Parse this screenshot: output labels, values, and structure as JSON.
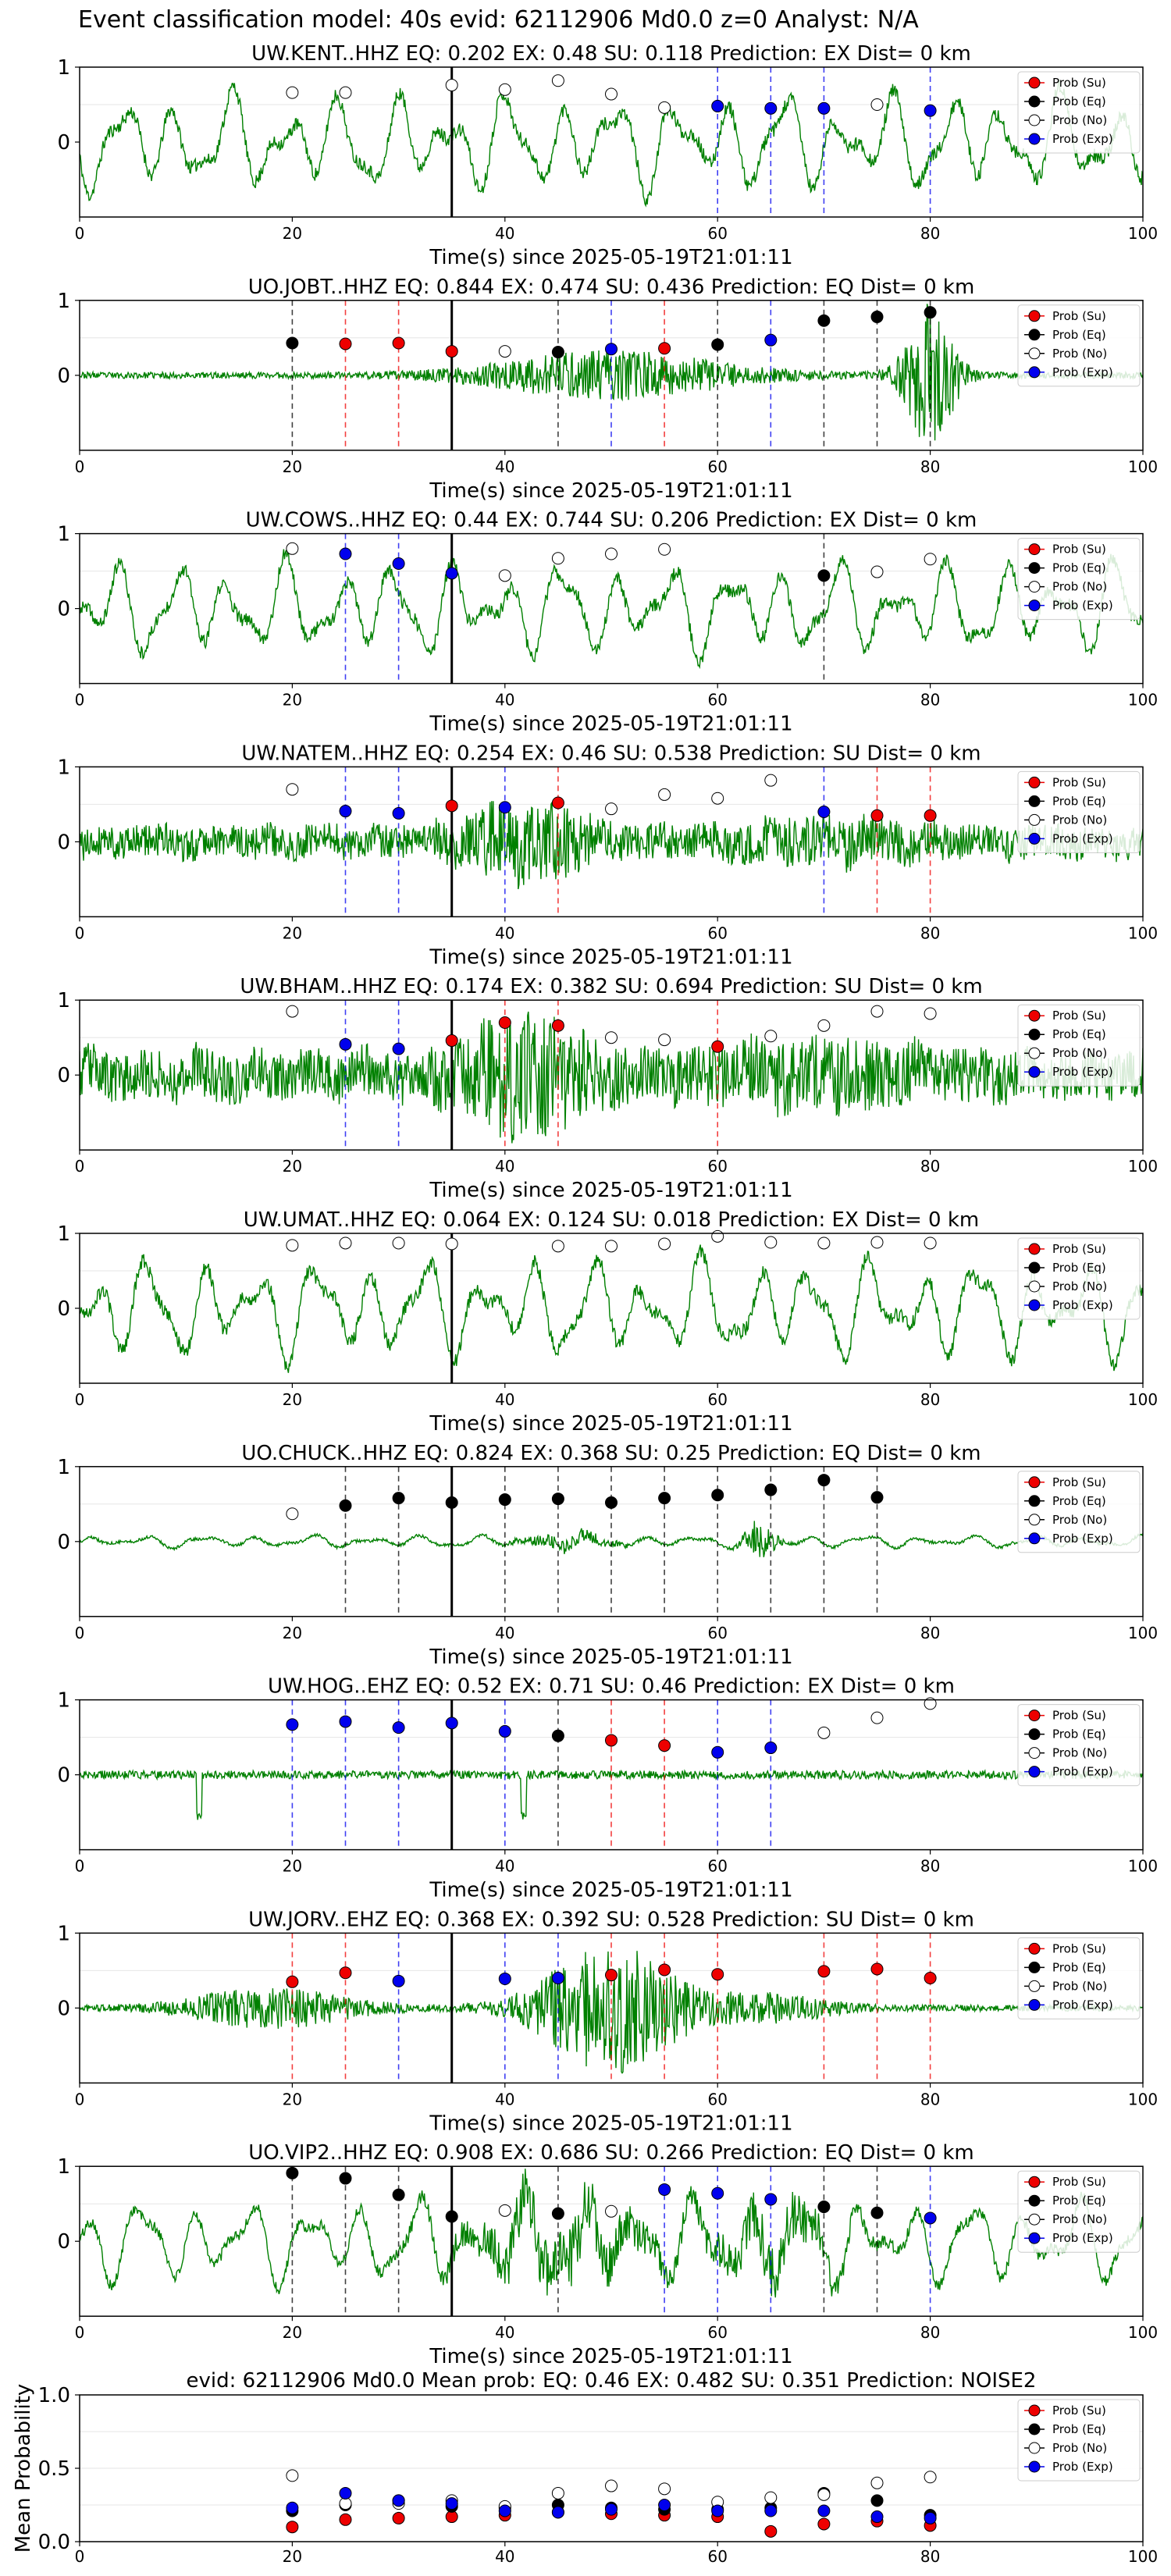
{
  "figure": {
    "suptitle": "Event classification model: 40s evid: 62112906 Md0.0 z=0 Analyst: N/A"
  },
  "legend_labels": [
    "Prob (Su)",
    "Prob (Eq)",
    "Prob (No)",
    "Prob (Exp)"
  ],
  "colors": {
    "su": "#ee0000",
    "eq": "#000000",
    "no": "#ffffff",
    "exp": "#0000ee",
    "trace": "#008000",
    "origin_line": "#000000",
    "grid": "#e6e6e6"
  },
  "chart_data": [
    {
      "type": "scatter",
      "title": "UW.KENT..HHZ   EQ: 0.202  EX: 0.48  SU: 0.118   Prediction: EX    Dist= 0 km",
      "xlabel": "Time(s) since 2025-05-19T21:01:11",
      "ylabel": "",
      "xlim": [
        0,
        100
      ],
      "ylim": [
        -1,
        1
      ],
      "x_ticks": [
        "0",
        "20",
        "40",
        "60",
        "80",
        "100"
      ],
      "y_ticks": [
        "0",
        "1"
      ],
      "origin_time": 35,
      "trace": {
        "style": "lowfreq",
        "amp": 0.78,
        "seed": 11
      },
      "points": [
        {
          "x": 20,
          "y": 0.66,
          "class": "no"
        },
        {
          "x": 25,
          "y": 0.66,
          "class": "no"
        },
        {
          "x": 35,
          "y": 0.76,
          "class": "no"
        },
        {
          "x": 40,
          "y": 0.7,
          "class": "no"
        },
        {
          "x": 45,
          "y": 0.82,
          "class": "no"
        },
        {
          "x": 50,
          "y": 0.64,
          "class": "no"
        },
        {
          "x": 55,
          "y": 0.46,
          "class": "no"
        },
        {
          "x": 60,
          "y": 0.48,
          "class": "exp"
        },
        {
          "x": 65,
          "y": 0.45,
          "class": "exp"
        },
        {
          "x": 70,
          "y": 0.45,
          "class": "exp"
        },
        {
          "x": 75,
          "y": 0.5,
          "class": "no"
        },
        {
          "x": 80,
          "y": 0.42,
          "class": "exp"
        }
      ]
    },
    {
      "type": "scatter",
      "title": "UO.JOBT..HHZ   EQ: 0.844  EX: 0.474  SU: 0.436   Prediction: EQ    Dist= 0 km",
      "xlabel": "Time(s) since 2025-05-19T21:01:11",
      "ylabel": "",
      "xlim": [
        0,
        100
      ],
      "ylim": [
        -1,
        1
      ],
      "x_ticks": [
        "0",
        "20",
        "40",
        "60",
        "80",
        "100"
      ],
      "y_ticks": [
        "0",
        "1"
      ],
      "origin_time": 35,
      "trace": {
        "style": "quiet_burst",
        "amp": 0.85,
        "seed": 23
      },
      "points": [
        {
          "x": 20,
          "y": 0.43,
          "class": "eq"
        },
        {
          "x": 25,
          "y": 0.42,
          "class": "su"
        },
        {
          "x": 30,
          "y": 0.43,
          "class": "su"
        },
        {
          "x": 35,
          "y": 0.32,
          "class": "su"
        },
        {
          "x": 40,
          "y": 0.32,
          "class": "no"
        },
        {
          "x": 45,
          "y": 0.31,
          "class": "eq"
        },
        {
          "x": 50,
          "y": 0.35,
          "class": "exp"
        },
        {
          "x": 55,
          "y": 0.36,
          "class": "su"
        },
        {
          "x": 60,
          "y": 0.41,
          "class": "eq"
        },
        {
          "x": 65,
          "y": 0.47,
          "class": "exp"
        },
        {
          "x": 70,
          "y": 0.73,
          "class": "eq"
        },
        {
          "x": 75,
          "y": 0.78,
          "class": "eq"
        },
        {
          "x": 80,
          "y": 0.84,
          "class": "eq"
        }
      ]
    },
    {
      "type": "scatter",
      "title": "UW.COWS..HHZ   EQ: 0.44  EX: 0.744  SU: 0.206   Prediction: EX    Dist= 0 km",
      "xlabel": "Time(s) since 2025-05-19T21:01:11",
      "ylabel": "",
      "xlim": [
        0,
        100
      ],
      "ylim": [
        -1,
        1
      ],
      "x_ticks": [
        "0",
        "20",
        "40",
        "60",
        "80",
        "100"
      ],
      "y_ticks": [
        "0",
        "1"
      ],
      "origin_time": 35,
      "trace": {
        "style": "lowfreq",
        "amp": 0.75,
        "seed": 37
      },
      "points": [
        {
          "x": 20,
          "y": 0.8,
          "class": "no"
        },
        {
          "x": 25,
          "y": 0.73,
          "class": "exp"
        },
        {
          "x": 30,
          "y": 0.6,
          "class": "exp"
        },
        {
          "x": 35,
          "y": 0.47,
          "class": "exp"
        },
        {
          "x": 40,
          "y": 0.44,
          "class": "no"
        },
        {
          "x": 45,
          "y": 0.67,
          "class": "no"
        },
        {
          "x": 50,
          "y": 0.73,
          "class": "no"
        },
        {
          "x": 55,
          "y": 0.79,
          "class": "no"
        },
        {
          "x": 70,
          "y": 0.44,
          "class": "eq"
        },
        {
          "x": 75,
          "y": 0.49,
          "class": "no"
        },
        {
          "x": 80,
          "y": 0.66,
          "class": "no"
        }
      ]
    },
    {
      "type": "scatter",
      "title": "UW.NATEM..HHZ   EQ: 0.254  EX: 0.46  SU: 0.538   Prediction: SU    Dist= 0 km",
      "xlabel": "Time(s) since 2025-05-19T21:01:11",
      "ylabel": "",
      "xlim": [
        0,
        100
      ],
      "ylim": [
        -1,
        1
      ],
      "x_ticks": [
        "0",
        "20",
        "40",
        "60",
        "80",
        "100"
      ],
      "y_ticks": [
        "0",
        "1"
      ],
      "origin_time": 35,
      "trace": {
        "style": "noisy",
        "amp": 0.5,
        "seed": 41
      },
      "points": [
        {
          "x": 20,
          "y": 0.7,
          "class": "no"
        },
        {
          "x": 25,
          "y": 0.41,
          "class": "exp"
        },
        {
          "x": 30,
          "y": 0.38,
          "class": "exp"
        },
        {
          "x": 35,
          "y": 0.48,
          "class": "su"
        },
        {
          "x": 40,
          "y": 0.46,
          "class": "exp"
        },
        {
          "x": 45,
          "y": 0.52,
          "class": "su"
        },
        {
          "x": 50,
          "y": 0.44,
          "class": "no"
        },
        {
          "x": 55,
          "y": 0.63,
          "class": "no"
        },
        {
          "x": 60,
          "y": 0.58,
          "class": "no"
        },
        {
          "x": 65,
          "y": 0.82,
          "class": "no"
        },
        {
          "x": 70,
          "y": 0.4,
          "class": "exp"
        },
        {
          "x": 75,
          "y": 0.35,
          "class": "su"
        },
        {
          "x": 80,
          "y": 0.35,
          "class": "su"
        }
      ]
    },
    {
      "type": "scatter",
      "title": "UW.BHAM..HHZ   EQ: 0.174  EX: 0.382  SU: 0.694   Prediction: SU    Dist= 0 km",
      "xlabel": "Time(s) since 2025-05-19T21:01:11",
      "ylabel": "",
      "xlim": [
        0,
        100
      ],
      "ylim": [
        -1,
        1
      ],
      "x_ticks": [
        "0",
        "20",
        "40",
        "60",
        "80",
        "100"
      ],
      "y_ticks": [
        "0",
        "1"
      ],
      "origin_time": 35,
      "trace": {
        "style": "noisy",
        "amp": 0.75,
        "seed": 53
      },
      "points": [
        {
          "x": 20,
          "y": 0.85,
          "class": "no"
        },
        {
          "x": 25,
          "y": 0.41,
          "class": "exp"
        },
        {
          "x": 30,
          "y": 0.35,
          "class": "exp"
        },
        {
          "x": 35,
          "y": 0.46,
          "class": "su"
        },
        {
          "x": 40,
          "y": 0.7,
          "class": "su"
        },
        {
          "x": 45,
          "y": 0.66,
          "class": "su"
        },
        {
          "x": 50,
          "y": 0.5,
          "class": "no"
        },
        {
          "x": 55,
          "y": 0.47,
          "class": "no"
        },
        {
          "x": 60,
          "y": 0.38,
          "class": "su"
        },
        {
          "x": 65,
          "y": 0.52,
          "class": "no"
        },
        {
          "x": 70,
          "y": 0.66,
          "class": "no"
        },
        {
          "x": 75,
          "y": 0.85,
          "class": "no"
        },
        {
          "x": 80,
          "y": 0.82,
          "class": "no"
        }
      ]
    },
    {
      "type": "scatter",
      "title": "UW.UMAT..HHZ   EQ: 0.064  EX: 0.124  SU: 0.018   Prediction: EX    Dist= 0 km",
      "xlabel": "Time(s) since 2025-05-19T21:01:11",
      "ylabel": "",
      "xlim": [
        0,
        100
      ],
      "ylim": [
        -1,
        1
      ],
      "x_ticks": [
        "0",
        "20",
        "40",
        "60",
        "80",
        "100"
      ],
      "y_ticks": [
        "0",
        "1"
      ],
      "origin_time": 35,
      "trace": {
        "style": "lowfreq",
        "amp": 0.8,
        "seed": 67
      },
      "points": [
        {
          "x": 20,
          "y": 0.84,
          "class": "no"
        },
        {
          "x": 25,
          "y": 0.87,
          "class": "no"
        },
        {
          "x": 30,
          "y": 0.87,
          "class": "no"
        },
        {
          "x": 35,
          "y": 0.86,
          "class": "no"
        },
        {
          "x": 45,
          "y": 0.83,
          "class": "no"
        },
        {
          "x": 50,
          "y": 0.83,
          "class": "no"
        },
        {
          "x": 55,
          "y": 0.86,
          "class": "no"
        },
        {
          "x": 60,
          "y": 0.96,
          "class": "no"
        },
        {
          "x": 65,
          "y": 0.88,
          "class": "no"
        },
        {
          "x": 70,
          "y": 0.87,
          "class": "no"
        },
        {
          "x": 75,
          "y": 0.88,
          "class": "no"
        },
        {
          "x": 80,
          "y": 0.87,
          "class": "no"
        }
      ]
    },
    {
      "type": "scatter",
      "title": "UO.CHUCK..HHZ   EQ: 0.824  EX: 0.368  SU: 0.25   Prediction: EQ    Dist= 0 km",
      "xlabel": "Time(s) since 2025-05-19T21:01:11",
      "ylabel": "",
      "xlim": [
        0,
        100
      ],
      "ylim": [
        -1,
        1
      ],
      "x_ticks": [
        "0",
        "20",
        "40",
        "60",
        "80",
        "100"
      ],
      "y_ticks": [
        "0",
        "1"
      ],
      "origin_time": 35,
      "trace": {
        "style": "quiet_lowfreq_burst",
        "amp": 0.25,
        "seed": 79
      },
      "points": [
        {
          "x": 20,
          "y": 0.37,
          "class": "no"
        },
        {
          "x": 25,
          "y": 0.48,
          "class": "eq"
        },
        {
          "x": 30,
          "y": 0.58,
          "class": "eq"
        },
        {
          "x": 35,
          "y": 0.52,
          "class": "eq"
        },
        {
          "x": 40,
          "y": 0.56,
          "class": "eq"
        },
        {
          "x": 45,
          "y": 0.57,
          "class": "eq"
        },
        {
          "x": 50,
          "y": 0.52,
          "class": "eq"
        },
        {
          "x": 55,
          "y": 0.58,
          "class": "eq"
        },
        {
          "x": 60,
          "y": 0.62,
          "class": "eq"
        },
        {
          "x": 65,
          "y": 0.69,
          "class": "eq"
        },
        {
          "x": 70,
          "y": 0.82,
          "class": "eq"
        },
        {
          "x": 75,
          "y": 0.59,
          "class": "eq"
        }
      ]
    },
    {
      "type": "scatter",
      "title": "UW.HOG..EHZ   EQ: 0.52  EX: 0.71  SU: 0.46   Prediction: EX    Dist= 0 km",
      "xlabel": "Time(s) since 2025-05-19T21:01:11",
      "ylabel": "",
      "xlim": [
        0,
        100
      ],
      "ylim": [
        -1,
        1
      ],
      "x_ticks": [
        "0",
        "20",
        "40",
        "60",
        "80",
        "100"
      ],
      "y_ticks": [
        "0",
        "1"
      ],
      "origin_time": 35,
      "trace": {
        "style": "quiet_noisy",
        "amp": 0.22,
        "seed": 83
      },
      "points": [
        {
          "x": 20,
          "y": 0.67,
          "class": "exp"
        },
        {
          "x": 25,
          "y": 0.71,
          "class": "exp"
        },
        {
          "x": 30,
          "y": 0.63,
          "class": "exp"
        },
        {
          "x": 35,
          "y": 0.69,
          "class": "exp"
        },
        {
          "x": 40,
          "y": 0.58,
          "class": "exp"
        },
        {
          "x": 45,
          "y": 0.52,
          "class": "eq"
        },
        {
          "x": 50,
          "y": 0.46,
          "class": "su"
        },
        {
          "x": 55,
          "y": 0.39,
          "class": "su"
        },
        {
          "x": 60,
          "y": 0.3,
          "class": "exp"
        },
        {
          "x": 65,
          "y": 0.36,
          "class": "exp"
        },
        {
          "x": 70,
          "y": 0.56,
          "class": "no"
        },
        {
          "x": 75,
          "y": 0.76,
          "class": "no"
        },
        {
          "x": 80,
          "y": 0.95,
          "class": "no"
        }
      ]
    },
    {
      "type": "scatter",
      "title": "UW.JORV..EHZ   EQ: 0.368  EX: 0.392  SU: 0.528   Prediction: SU    Dist= 0 km",
      "xlabel": "Time(s) since 2025-05-19T21:01:11",
      "ylabel": "",
      "xlim": [
        0,
        100
      ],
      "ylim": [
        -1,
        1
      ],
      "x_ticks": [
        "0",
        "20",
        "40",
        "60",
        "80",
        "100"
      ],
      "y_ticks": [
        "0",
        "1"
      ],
      "origin_time": 35,
      "trace": {
        "style": "quiet_burst_mid",
        "amp": 0.85,
        "seed": 97
      },
      "points": [
        {
          "x": 20,
          "y": 0.35,
          "class": "su"
        },
        {
          "x": 25,
          "y": 0.47,
          "class": "su"
        },
        {
          "x": 30,
          "y": 0.36,
          "class": "exp"
        },
        {
          "x": 40,
          "y": 0.39,
          "class": "exp"
        },
        {
          "x": 45,
          "y": 0.4,
          "class": "exp"
        },
        {
          "x": 50,
          "y": 0.44,
          "class": "su"
        },
        {
          "x": 55,
          "y": 0.51,
          "class": "su"
        },
        {
          "x": 60,
          "y": 0.45,
          "class": "su"
        },
        {
          "x": 70,
          "y": 0.49,
          "class": "su"
        },
        {
          "x": 75,
          "y": 0.52,
          "class": "su"
        },
        {
          "x": 80,
          "y": 0.4,
          "class": "su"
        }
      ]
    },
    {
      "type": "scatter",
      "title": "UO.VIP2..HHZ   EQ: 0.908  EX: 0.686  SU: 0.266   Prediction: EQ    Dist= 0 km",
      "xlabel": "Time(s) since 2025-05-19T21:01:11",
      "ylabel": "",
      "xlim": [
        0,
        100
      ],
      "ylim": [
        -1,
        1
      ],
      "x_ticks": [
        "0",
        "20",
        "40",
        "60",
        "80",
        "100"
      ],
      "y_ticks": [
        "0",
        "1"
      ],
      "origin_time": 35,
      "trace": {
        "style": "lowfreq_noisy",
        "amp": 0.75,
        "seed": 101
      },
      "points": [
        {
          "x": 20,
          "y": 0.91,
          "class": "eq"
        },
        {
          "x": 25,
          "y": 0.84,
          "class": "eq"
        },
        {
          "x": 30,
          "y": 0.62,
          "class": "eq"
        },
        {
          "x": 35,
          "y": 0.33,
          "class": "eq"
        },
        {
          "x": 40,
          "y": 0.41,
          "class": "no"
        },
        {
          "x": 45,
          "y": 0.37,
          "class": "eq"
        },
        {
          "x": 50,
          "y": 0.4,
          "class": "no"
        },
        {
          "x": 55,
          "y": 0.69,
          "class": "exp"
        },
        {
          "x": 60,
          "y": 0.64,
          "class": "exp"
        },
        {
          "x": 65,
          "y": 0.56,
          "class": "exp"
        },
        {
          "x": 70,
          "y": 0.46,
          "class": "eq"
        },
        {
          "x": 75,
          "y": 0.38,
          "class": "eq"
        },
        {
          "x": 80,
          "y": 0.31,
          "class": "exp"
        }
      ]
    },
    {
      "type": "scatter",
      "title": "evid: 62112906  Md0.0   Mean prob:   EQ: 0.46  EX: 0.482  SU: 0.351   Prediction: NOISE2",
      "xlabel": "",
      "ylabel": "Mean Probability",
      "xlim": [
        0,
        100
      ],
      "ylim": [
        0,
        1
      ],
      "x_ticks": [
        "0",
        "20",
        "40",
        "60",
        "80",
        "100"
      ],
      "y_ticks": [
        "0.0",
        "0.5",
        "1.0"
      ],
      "points_by_class": {
        "x": [
          20,
          25,
          30,
          35,
          40,
          45,
          50,
          55,
          60,
          65,
          70,
          75,
          80
        ],
        "su": [
          0.1,
          0.15,
          0.16,
          0.17,
          0.18,
          0.2,
          0.19,
          0.18,
          0.17,
          0.07,
          0.12,
          0.14,
          0.11
        ],
        "eq": [
          0.21,
          0.25,
          0.28,
          0.24,
          0.23,
          0.25,
          0.23,
          0.22,
          0.22,
          0.23,
          0.33,
          0.28,
          0.18
        ],
        "no": [
          0.45,
          0.26,
          0.26,
          0.28,
          0.24,
          0.33,
          0.38,
          0.36,
          0.27,
          0.3,
          0.32,
          0.4,
          0.44
        ],
        "exp": [
          0.23,
          0.33,
          0.28,
          0.26,
          0.21,
          0.2,
          0.22,
          0.25,
          0.21,
          0.21,
          0.21,
          0.17,
          0.16
        ]
      }
    }
  ]
}
